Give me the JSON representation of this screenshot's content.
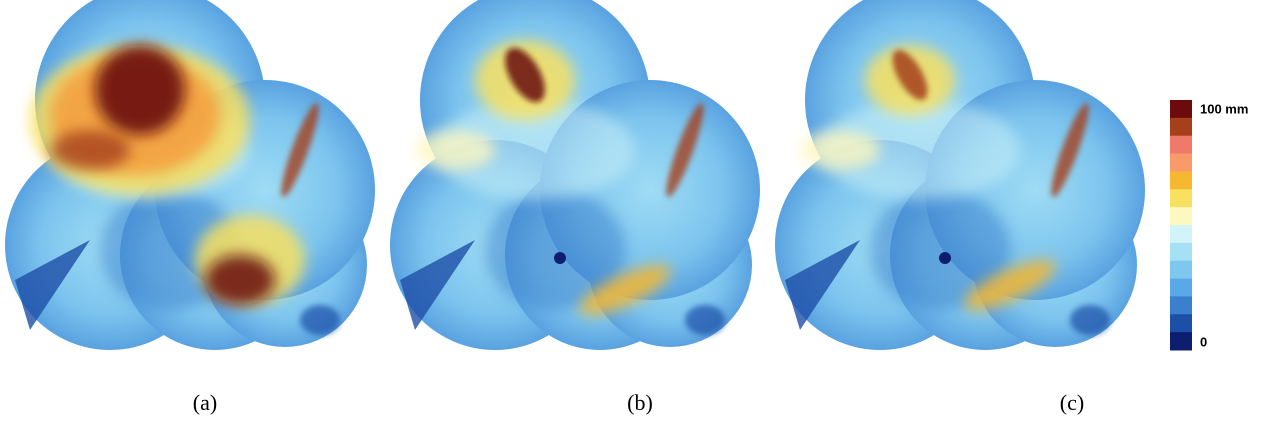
{
  "colorbar": {
    "max_label": "100 mm",
    "min_label": "0",
    "colors": [
      "#6b0b0b",
      "#a5401a",
      "#f07a6a",
      "#f89a6a",
      "#f5b830",
      "#f8e060",
      "#fdf7c0",
      "#d0f4f8",
      "#a6e0f5",
      "#7ec8f0",
      "#5aa8e8",
      "#3a80cc",
      "#1e4fa8",
      "#0c1f6e"
    ]
  },
  "panels": [
    {
      "label": "(a)"
    },
    {
      "label": "(b)"
    },
    {
      "label": "(c)"
    }
  ]
}
